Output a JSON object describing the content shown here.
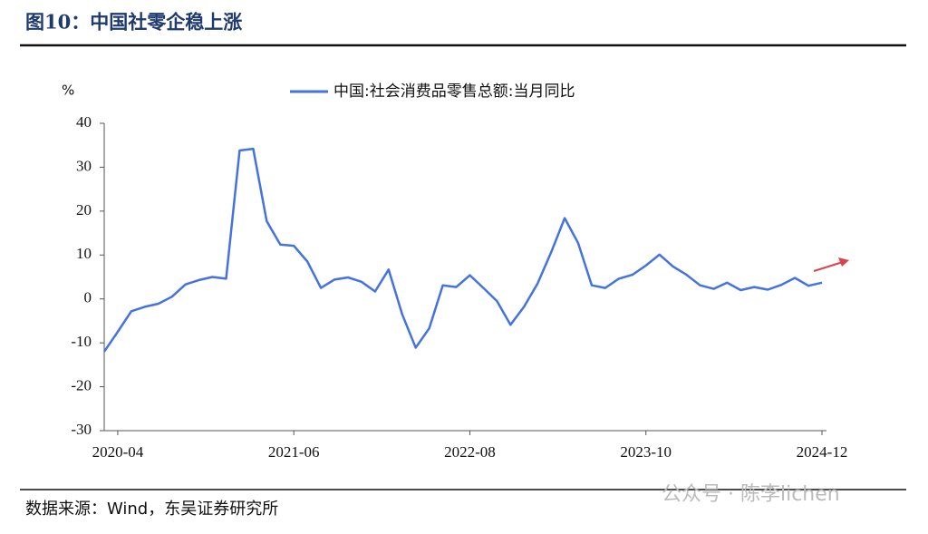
{
  "chart_data": {
    "type": "line",
    "title": "图10：中国社零企稳上涨",
    "y_label": "%",
    "source": "数据来源：Wind，东吴证券研究所",
    "watermark": "公众号 · 陈李lichen",
    "categories": [
      null,
      "2020-04",
      null,
      null,
      null,
      null,
      null,
      null,
      null,
      null,
      null,
      null,
      null,
      null,
      "2021-06",
      null,
      null,
      null,
      null,
      null,
      null,
      null,
      null,
      null,
      null,
      null,
      null,
      "2022-08",
      null,
      null,
      null,
      null,
      null,
      null,
      null,
      null,
      null,
      null,
      null,
      null,
      "2023-10",
      null,
      null,
      null,
      null,
      null,
      null,
      null,
      null,
      null,
      null,
      null,
      null,
      "2024-12"
    ],
    "series": [
      {
        "name": "中国:社会消费品零售总额:当月同比",
        "color": "#4472e0",
        "values": [
          -12,
          -7.5,
          -2.8,
          -1.8,
          -1.1,
          0.5,
          3.3,
          4.3,
          5.0,
          4.6,
          33.8,
          34.2,
          17.7,
          12.4,
          12.1,
          8.5,
          2.5,
          4.4,
          4.9,
          3.9,
          1.7,
          6.7,
          -3.5,
          -11.1,
          -6.7,
          3.1,
          2.7,
          5.4,
          2.5,
          -0.5,
          -5.9,
          -1.8,
          3.5,
          10.6,
          18.4,
          12.7,
          3.1,
          2.5,
          4.6,
          5.5,
          7.6,
          10.1,
          7.4,
          5.5,
          3.1,
          2.3,
          3.7,
          2.0,
          2.7,
          2.1,
          3.2,
          4.8,
          3.0,
          3.7
        ]
      }
    ],
    "ylim": [
      -30,
      40
    ],
    "yticks": [
      -30,
      -20,
      -10,
      0,
      10,
      20,
      30,
      40
    ],
    "grid": false
  }
}
